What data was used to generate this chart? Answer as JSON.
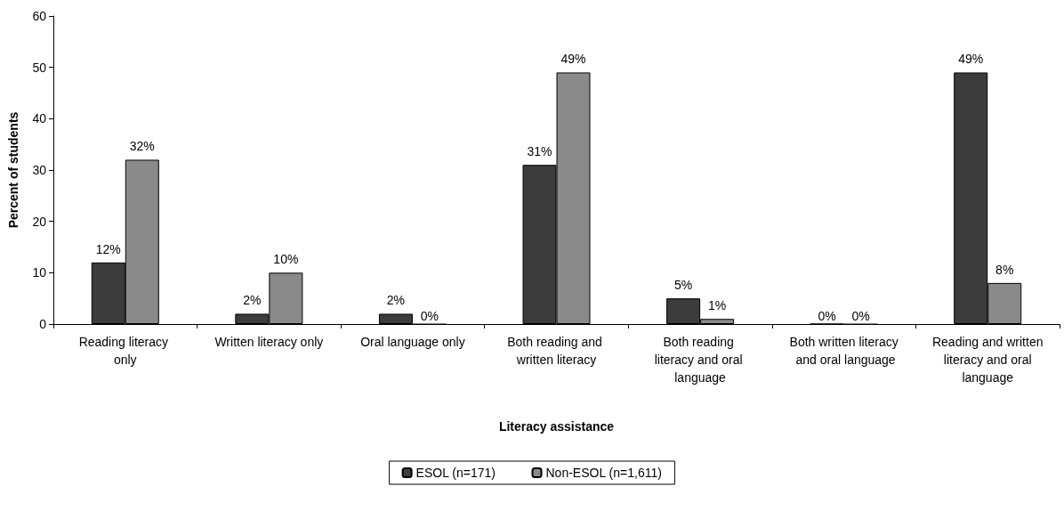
{
  "chart_data": {
    "type": "bar",
    "xlabel": "Literacy assistance",
    "ylabel": "Percent of students",
    "categories": [
      "Reading literacy only",
      "Written literacy only",
      "Oral language only",
      "Both reading and written literacy",
      "Both reading literacy and oral language",
      "Both written literacy and oral language",
      "Reading and written literacy and oral language"
    ],
    "series": [
      {
        "name": "ESOL (n=171)",
        "color": "#3c3c3c",
        "values": [
          12,
          2,
          2,
          31,
          5,
          0,
          49
        ],
        "value_labels": [
          "12%",
          "2%",
          "2%",
          "31%",
          "5%",
          "0%",
          "49%"
        ]
      },
      {
        "name": "Non-ESOL (n=1,611)",
        "color": "#8a8a8a",
        "values": [
          32,
          10,
          0,
          49,
          1,
          0,
          8
        ],
        "value_labels": [
          "32%",
          "10%",
          "0%",
          "49%",
          "1%",
          "0%",
          "8%"
        ]
      }
    ],
    "ylim": [
      0,
      60
    ],
    "yticks": [
      0,
      10,
      20,
      30,
      40,
      50,
      60
    ],
    "grid": false,
    "legend": "bottom"
  }
}
